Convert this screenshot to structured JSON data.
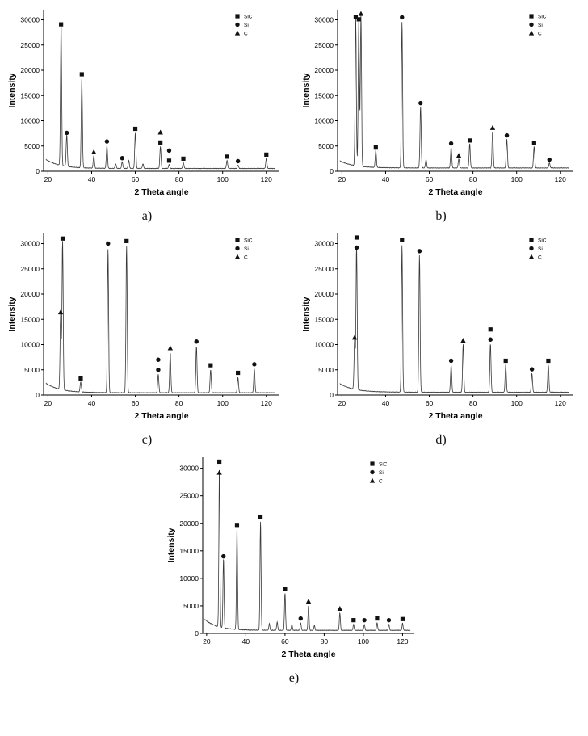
{
  "page": {
    "background": "#ffffff",
    "line_color": "#3a3a3a",
    "marker_color": "#111111"
  },
  "legend": [
    {
      "marker": "square",
      "label": "SiC"
    },
    {
      "marker": "circle",
      "label": "Si"
    },
    {
      "marker": "triangle",
      "label": "C"
    }
  ],
  "axes": {
    "xlabel": "2 Theta angle",
    "ylabel": "Intensity",
    "xlim": [
      18,
      126
    ],
    "ylim": [
      0,
      32000
    ],
    "xticks": [
      20,
      40,
      60,
      80,
      100,
      120
    ],
    "yticks": [
      0,
      5000,
      10000,
      15000,
      20000,
      25000,
      30000
    ]
  },
  "chart_data": [
    {
      "id": "a",
      "label": "a)",
      "type": "line",
      "baseline": {
        "start": 2300,
        "end": 500
      },
      "peaks": [
        [
          26,
          27800,
          "s"
        ],
        [
          28.6,
          6300,
          "c"
        ],
        [
          35.5,
          17900,
          "s"
        ],
        [
          41,
          2500,
          "t"
        ],
        [
          47,
          4600,
          "c"
        ],
        [
          51,
          900,
          ""
        ],
        [
          54,
          1300,
          "c"
        ],
        [
          57,
          1600,
          ""
        ],
        [
          60,
          7100,
          "s"
        ],
        [
          63.5,
          900,
          ""
        ],
        [
          71.5,
          4400,
          "st"
        ],
        [
          75.5,
          800,
          "sc"
        ],
        [
          82,
          1200,
          "s"
        ],
        [
          102,
          1600,
          "s"
        ],
        [
          107,
          700,
          "c"
        ],
        [
          120,
          2000,
          "s"
        ]
      ]
    },
    {
      "id": "b",
      "label": "b)",
      "type": "line",
      "baseline": {
        "start": 2000,
        "end": 600
      },
      "peaks": [
        [
          26.3,
          29200,
          "s"
        ],
        [
          27.7,
          28800,
          "s"
        ],
        [
          28.7,
          30100,
          "t"
        ],
        [
          35.5,
          3400,
          "s"
        ],
        [
          47.5,
          29200,
          "c"
        ],
        [
          56,
          12200,
          "c"
        ],
        [
          58.5,
          1700,
          ""
        ],
        [
          70,
          4200,
          "c"
        ],
        [
          73.5,
          1800,
          "t"
        ],
        [
          78.5,
          4800,
          "s"
        ],
        [
          89,
          7300,
          "t"
        ],
        [
          95.5,
          5800,
          "c"
        ],
        [
          108,
          4300,
          "s"
        ],
        [
          115,
          1000,
          "c"
        ]
      ]
    },
    {
      "id": "c",
      "label": "c)",
      "type": "line",
      "baseline": {
        "start": 2300,
        "end": 400
      },
      "peaks": [
        [
          25.8,
          15100,
          "t"
        ],
        [
          26.7,
          29700,
          "s"
        ],
        [
          35,
          2000,
          "s"
        ],
        [
          47.5,
          28700,
          "c"
        ],
        [
          56,
          29200,
          "s"
        ],
        [
          70.5,
          3700,
          "cc"
        ],
        [
          76,
          8000,
          "t"
        ],
        [
          88,
          9300,
          "c"
        ],
        [
          94.5,
          4600,
          "s"
        ],
        [
          107,
          3100,
          "s"
        ],
        [
          114.5,
          4800,
          "c"
        ]
      ]
    },
    {
      "id": "d",
      "label": "d)",
      "type": "line",
      "baseline": {
        "start": 2200,
        "end": 500
      },
      "peaks": [
        [
          25.8,
          10100,
          "t"
        ],
        [
          26.7,
          28600,
          "cs"
        ],
        [
          47.5,
          29400,
          "s"
        ],
        [
          55.5,
          27200,
          "c"
        ],
        [
          70,
          5500,
          "c"
        ],
        [
          75.5,
          9500,
          "t"
        ],
        [
          88,
          9700,
          "cs"
        ],
        [
          95,
          5500,
          "s"
        ],
        [
          107,
          3800,
          "c"
        ],
        [
          114.5,
          5500,
          "s"
        ]
      ]
    },
    {
      "id": "e",
      "label": "e)",
      "type": "line",
      "baseline": {
        "start": 2500,
        "end": 500
      },
      "peaks": [
        [
          26.5,
          28700,
          "ts"
        ],
        [
          28.6,
          12700,
          "c"
        ],
        [
          35.5,
          18400,
          "s"
        ],
        [
          47.5,
          19900,
          "s"
        ],
        [
          52,
          1200,
          ""
        ],
        [
          56,
          1500,
          ""
        ],
        [
          60,
          6800,
          "s"
        ],
        [
          63.5,
          1100,
          ""
        ],
        [
          68,
          1400,
          "c"
        ],
        [
          72,
          4500,
          "t"
        ],
        [
          75,
          900,
          ""
        ],
        [
          88,
          3200,
          "t"
        ],
        [
          95,
          1100,
          "s"
        ],
        [
          100.5,
          1100,
          "c"
        ],
        [
          107,
          1400,
          "s"
        ],
        [
          113,
          1100,
          "c"
        ],
        [
          120,
          1300,
          "s"
        ]
      ]
    }
  ]
}
